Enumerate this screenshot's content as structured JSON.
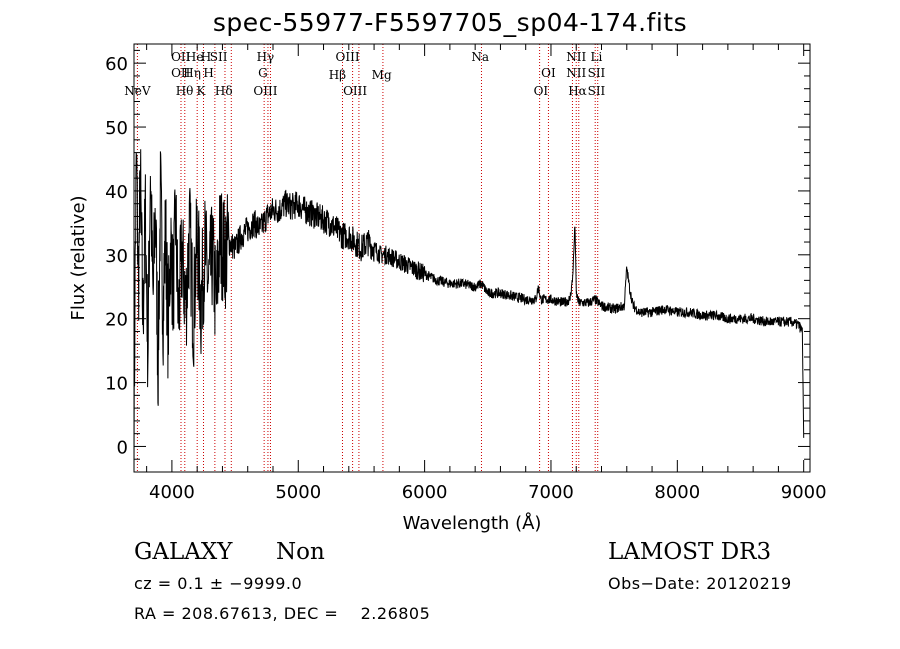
{
  "chart_data": {
    "type": "line",
    "title": "spec-55977-F5597705_sp04-174.fits",
    "xlabel": "Wavelength (Å)",
    "ylabel": "Flux (relative)",
    "xlim": [
      3700,
      9050
    ],
    "ylim": [
      -4,
      63
    ],
    "xticks": [
      4000,
      5000,
      6000,
      7000,
      8000,
      9000
    ],
    "yticks": [
      0,
      10,
      20,
      30,
      40,
      50,
      60
    ],
    "series": [
      {
        "name": "spectrum",
        "anchors": [
          [
            3700,
            0
          ],
          [
            3710,
            30
          ],
          [
            3720,
            45
          ],
          [
            3735,
            25
          ],
          [
            3750,
            42
          ],
          [
            3770,
            20
          ],
          [
            3790,
            36
          ],
          [
            3810,
            15
          ],
          [
            3830,
            44
          ],
          [
            3850,
            22
          ],
          [
            3870,
            38
          ],
          [
            3890,
            12
          ],
          [
            3910,
            40
          ],
          [
            3930,
            21
          ],
          [
            3950,
            34
          ],
          [
            3970,
            18
          ],
          [
            3990,
            32
          ],
          [
            4010,
            24
          ],
          [
            4030,
            36
          ],
          [
            4050,
            20
          ],
          [
            4080,
            30
          ],
          [
            4110,
            22
          ],
          [
            4140,
            34
          ],
          [
            4170,
            20
          ],
          [
            4200,
            33
          ],
          [
            4230,
            22
          ],
          [
            4260,
            31
          ],
          [
            4290,
            25
          ],
          [
            4320,
            30
          ],
          [
            4350,
            22
          ],
          [
            4380,
            33
          ],
          [
            4420,
            30
          ],
          [
            4450,
            32
          ],
          [
            4500,
            31
          ],
          [
            4550,
            33
          ],
          [
            4600,
            34
          ],
          [
            4650,
            35
          ],
          [
            4700,
            34
          ],
          [
            4750,
            36
          ],
          [
            4800,
            37
          ],
          [
            4850,
            37
          ],
          [
            4900,
            38
          ],
          [
            4950,
            37.5
          ],
          [
            5000,
            38
          ],
          [
            5050,
            37
          ],
          [
            5100,
            36.5
          ],
          [
            5150,
            36
          ],
          [
            5200,
            35.5
          ],
          [
            5250,
            35
          ],
          [
            5300,
            34
          ],
          [
            5350,
            33
          ],
          [
            5400,
            33
          ],
          [
            5450,
            32
          ],
          [
            5500,
            31
          ],
          [
            5550,
            32
          ],
          [
            5600,
            31
          ],
          [
            5650,
            30
          ],
          [
            5700,
            30
          ],
          [
            5750,
            29.5
          ],
          [
            5800,
            29
          ],
          [
            5850,
            28.5
          ],
          [
            5900,
            28
          ],
          [
            5950,
            27.5
          ],
          [
            6000,
            27
          ],
          [
            6050,
            26.5
          ],
          [
            6100,
            26
          ],
          [
            6200,
            25.5
          ],
          [
            6300,
            25.5
          ],
          [
            6400,
            25
          ],
          [
            6450,
            25.5
          ],
          [
            6500,
            24
          ],
          [
            6600,
            24
          ],
          [
            6700,
            23.5
          ],
          [
            6800,
            23
          ],
          [
            6880,
            23
          ],
          [
            6900,
            25
          ],
          [
            6920,
            23
          ],
          [
            7000,
            23
          ],
          [
            7100,
            22.5
          ],
          [
            7150,
            23
          ],
          [
            7170,
            26
          ],
          [
            7180,
            30
          ],
          [
            7190,
            35
          ],
          [
            7200,
            24
          ],
          [
            7220,
            22.5
          ],
          [
            7300,
            22.5
          ],
          [
            7350,
            23
          ],
          [
            7400,
            22
          ],
          [
            7500,
            21.5
          ],
          [
            7580,
            22
          ],
          [
            7600,
            28
          ],
          [
            7620,
            25
          ],
          [
            7650,
            22
          ],
          [
            7700,
            21
          ],
          [
            7800,
            21
          ],
          [
            7900,
            21.5
          ],
          [
            8000,
            21
          ],
          [
            8100,
            21
          ],
          [
            8200,
            20.5
          ],
          [
            8300,
            20.5
          ],
          [
            8400,
            20
          ],
          [
            8500,
            20
          ],
          [
            8600,
            20
          ],
          [
            8700,
            19.5
          ],
          [
            8800,
            19.5
          ],
          [
            8900,
            19.5
          ],
          [
            8960,
            19
          ],
          [
            8990,
            18
          ],
          [
            9000,
            1
          ]
        ]
      }
    ],
    "emission_lines": [
      {
        "label": "NeV",
        "x": 3727,
        "row": 3
      },
      {
        "label": "OII",
        "x": 4070,
        "row": 0
      },
      {
        "label": "OII",
        "x": 4070,
        "row": 1
      },
      {
        "label": "Hθ",
        "x": 4100,
        "row": 3
      },
      {
        "label": "He",
        "x": 4180,
        "row": 0
      },
      {
        "label": "Hη",
        "x": 4160,
        "row": 1
      },
      {
        "label": "H",
        "x": 4270,
        "row": 0
      },
      {
        "label": "H",
        "x": 4290,
        "row": 1
      },
      {
        "label": "K",
        "x": 4230,
        "row": 3
      },
      {
        "label": "SII",
        "x": 4370,
        "row": 0
      },
      {
        "label": "Hδ",
        "x": 4410,
        "row": 3
      },
      {
        "label": "Hγ",
        "x": 4740,
        "row": 0
      },
      {
        "label": "G",
        "x": 4720,
        "row": 1
      },
      {
        "label": "OIII",
        "x": 4740,
        "row": 3
      },
      {
        "label": "OIII",
        "x": 5390,
        "row": 0
      },
      {
        "label": "Hβ",
        "x": 5310,
        "row": 2
      },
      {
        "label": "OIII",
        "x": 5450,
        "row": 3
      },
      {
        "label": "Mg",
        "x": 5660,
        "row": 2
      },
      {
        "label": "Na",
        "x": 6440,
        "row": 0
      },
      {
        "label": "OI",
        "x": 6980,
        "row": 1
      },
      {
        "label": "OI",
        "x": 6920,
        "row": 3
      },
      {
        "label": "NII",
        "x": 7200,
        "row": 0
      },
      {
        "label": "NII",
        "x": 7200,
        "row": 1
      },
      {
        "label": "Hα",
        "x": 7210,
        "row": 3
      },
      {
        "label": "Li",
        "x": 7360,
        "row": 0
      },
      {
        "label": "SII",
        "x": 7360,
        "row": 1
      },
      {
        "label": "SII",
        "x": 7360,
        "row": 3
      }
    ],
    "line_markers_x": [
      3727,
      4072,
      4102,
      4200,
      4250,
      4340,
      4420,
      4470,
      4730,
      4760,
      4780,
      5350,
      5430,
      5480,
      5670,
      6450,
      6910,
      6980,
      7170,
      7200,
      7220,
      7350,
      7370
    ]
  },
  "info": {
    "object_class": "GALAXY",
    "subclass": "Non",
    "survey": "LAMOST DR3",
    "cz": "cz = 0.1 ± −9999.0",
    "obs_date": "Obs−Date: 20120219",
    "radec": "RA = 208.67613, DEC =    2.26805"
  },
  "colors": {
    "line": "#000000",
    "marker": "#cc0000",
    "background": "#ffffff"
  }
}
